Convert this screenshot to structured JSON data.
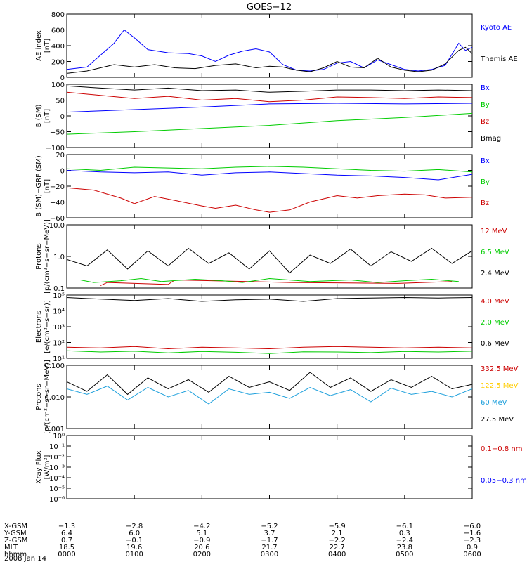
{
  "title": "GOES−12",
  "x_tick_hours": [
    0,
    1,
    2,
    3,
    4,
    5,
    6
  ],
  "footer": {
    "rows": [
      {
        "label": "X-GSM",
        "values": [
          "−1.3",
          "−2.8",
          "−4.2",
          "−5.2",
          "−5.9",
          "−6.1",
          "−6.0"
        ]
      },
      {
        "label": "Y-GSM",
        "values": [
          "6.4",
          "6.0",
          "5.1",
          "3.7",
          "2.1",
          "0.3",
          "−1.6"
        ]
      },
      {
        "label": "Z-GSM",
        "values": [
          "0.7",
          "−0.1",
          "−0.9",
          "−1.7",
          "−2.2",
          "−2.4",
          "−2.3"
        ]
      },
      {
        "label": "MLT",
        "values": [
          "18.5",
          "19.6",
          "20.6",
          "21.7",
          "22.7",
          "23.8",
          "0.9"
        ]
      },
      {
        "label": "hhmm",
        "values": [
          "0000",
          "0100",
          "0200",
          "0300",
          "0400",
          "0500",
          "0600"
        ]
      }
    ],
    "date": "2008 Jan 14"
  },
  "chart_data": [
    {
      "type": "line",
      "ylabel": [
        "AE index",
        "[nT]"
      ],
      "ylim": [
        0,
        800
      ],
      "yscale": "linear",
      "yticks": [
        "0",
        "200",
        "400",
        "600",
        "800"
      ],
      "series": [
        {
          "name": "Kyoto AE",
          "color": "#0000ff",
          "x": [
            0,
            0.3,
            0.5,
            0.7,
            0.85,
            1.0,
            1.2,
            1.5,
            1.8,
            2.0,
            2.2,
            2.4,
            2.6,
            2.8,
            3.0,
            3.2,
            3.4,
            3.6,
            3.8,
            4.0,
            4.2,
            4.4,
            4.6,
            4.8,
            5.0,
            5.2,
            5.4,
            5.6,
            5.8,
            5.9,
            6.0
          ],
          "y": [
            100,
            130,
            280,
            430,
            600,
            500,
            350,
            310,
            300,
            270,
            200,
            280,
            330,
            360,
            320,
            160,
            90,
            80,
            100,
            180,
            200,
            120,
            220,
            160,
            100,
            80,
            100,
            150,
            430,
            340,
            380
          ]
        },
        {
          "name": "Themis AE",
          "color": "#000000",
          "x": [
            0,
            0.3,
            0.5,
            0.7,
            1.0,
            1.3,
            1.6,
            1.9,
            2.2,
            2.5,
            2.8,
            3.0,
            3.2,
            3.4,
            3.6,
            3.8,
            4.0,
            4.2,
            4.4,
            4.6,
            4.8,
            5.0,
            5.2,
            5.4,
            5.6,
            5.8,
            5.9,
            6.0
          ],
          "y": [
            50,
            80,
            120,
            160,
            130,
            160,
            120,
            110,
            150,
            170,
            120,
            140,
            130,
            90,
            70,
            120,
            200,
            130,
            120,
            240,
            130,
            90,
            70,
            90,
            170,
            340,
            380,
            300
          ]
        }
      ]
    },
    {
      "type": "line",
      "ylabel": [
        "B (SM)",
        "[nT]"
      ],
      "ylim": [
        -100,
        100
      ],
      "yscale": "linear",
      "yticks": [
        "−100",
        "−50",
        "0",
        "50",
        "100"
      ],
      "series": [
        {
          "name": "Bx",
          "color": "#0000ff",
          "x": [
            0,
            1,
            2,
            3,
            4,
            5,
            6
          ],
          "y": [
            12,
            20,
            28,
            38,
            40,
            38,
            40
          ]
        },
        {
          "name": "By",
          "color": "#00cc00",
          "x": [
            0,
            1,
            2,
            3,
            4,
            5,
            6
          ],
          "y": [
            -58,
            -50,
            -40,
            -30,
            -15,
            -5,
            8
          ]
        },
        {
          "name": "Bz",
          "color": "#cc0000",
          "x": [
            0,
            0.5,
            1,
            1.5,
            2,
            2.5,
            3,
            3.5,
            4,
            4.5,
            5,
            5.5,
            6
          ],
          "y": [
            75,
            65,
            55,
            62,
            50,
            55,
            45,
            50,
            60,
            58,
            55,
            60,
            58
          ]
        },
        {
          "name": "Bmag",
          "color": "#000000",
          "x": [
            0,
            0.5,
            1,
            1.5,
            2,
            2.5,
            3,
            3.5,
            4,
            4.5,
            5,
            5.5,
            6
          ],
          "y": [
            95,
            88,
            82,
            88,
            80,
            82,
            75,
            78,
            82,
            82,
            80,
            82,
            80
          ]
        }
      ]
    },
    {
      "type": "line",
      "ylabel": [
        "B (SM)−GRF (SM)",
        "[nT]"
      ],
      "ylim": [
        -60,
        20
      ],
      "yscale": "linear",
      "yticks": [
        "−60",
        "−40",
        "−20",
        "0",
        "20"
      ],
      "series": [
        {
          "name": "Bx",
          "color": "#0000ff",
          "x": [
            0,
            0.5,
            1,
            1.5,
            2,
            2.5,
            3,
            3.5,
            4,
            4.5,
            5,
            5.5,
            6
          ],
          "y": [
            0,
            -2,
            -3,
            -2,
            -6,
            -3,
            -2,
            -4,
            -6,
            -7,
            -9,
            -12,
            -5
          ]
        },
        {
          "name": "By",
          "color": "#00cc00",
          "x": [
            0,
            0.5,
            1,
            1.5,
            2,
            2.5,
            3,
            3.5,
            4,
            4.5,
            5,
            5.5,
            6
          ],
          "y": [
            2,
            0,
            4,
            3,
            2,
            4,
            5,
            4,
            2,
            0,
            -1,
            1,
            -2
          ]
        },
        {
          "name": "Bz",
          "color": "#cc0000",
          "x": [
            0,
            0.4,
            0.8,
            1.0,
            1.3,
            1.6,
            2.0,
            2.2,
            2.5,
            2.8,
            3.0,
            3.3,
            3.6,
            4.0,
            4.3,
            4.6,
            5.0,
            5.3,
            5.6,
            6.0
          ],
          "y": [
            -22,
            -25,
            -35,
            -42,
            -33,
            -38,
            -45,
            -48,
            -44,
            -50,
            -53,
            -50,
            -40,
            -32,
            -35,
            -32,
            -30,
            -31,
            -35,
            -34
          ]
        }
      ]
    },
    {
      "type": "line",
      "ylabel": [
        "Protons",
        "[p/(cm²−s−sr−MeV)]"
      ],
      "ylim": [
        0.1,
        10
      ],
      "yscale": "log",
      "yticks": [
        "0.1",
        "1.0",
        "10.0"
      ],
      "series": [
        {
          "name": "12 MeV",
          "color": "#cc0000",
          "x": [
            0.5,
            0.6,
            1.5,
            1.6,
            3.3,
            4.9,
            5.7
          ],
          "y": [
            0.12,
            0.15,
            0.13,
            0.18,
            0.15,
            0.14,
            0.16
          ]
        },
        {
          "name": "6.5 MeV",
          "color": "#00cc00",
          "x": [
            0.2,
            0.4,
            0.8,
            1.1,
            1.4,
            1.9,
            2.3,
            2.6,
            3.0,
            3.6,
            4.2,
            4.6,
            5.0,
            5.4,
            5.8
          ],
          "y": [
            0.18,
            0.15,
            0.17,
            0.2,
            0.16,
            0.19,
            0.17,
            0.15,
            0.2,
            0.16,
            0.18,
            0.15,
            0.17,
            0.19,
            0.16
          ]
        },
        {
          "name": "2.4 MeV",
          "color": "#000000",
          "x": [
            0,
            0.3,
            0.6,
            0.9,
            1.2,
            1.5,
            1.8,
            2.1,
            2.4,
            2.7,
            3.0,
            3.3,
            3.6,
            3.9,
            4.2,
            4.5,
            4.8,
            5.1,
            5.4,
            5.7,
            6.0
          ],
          "y": [
            0.8,
            0.5,
            1.6,
            0.4,
            1.5,
            0.5,
            1.8,
            0.6,
            1.3,
            0.4,
            1.5,
            0.3,
            1.1,
            0.6,
            1.7,
            0.5,
            1.4,
            0.7,
            1.8,
            0.6,
            1.5
          ]
        }
      ]
    },
    {
      "type": "line",
      "ylabel": [
        "Electrons",
        "[e/(cm²−s−sr)]"
      ],
      "ylim": [
        10,
        100000
      ],
      "yscale": "log",
      "yticks": [
        "10¹",
        "10²",
        "10³",
        "10⁴",
        "10⁵"
      ],
      "series": [
        {
          "name": "4.0 MeV",
          "color": "#cc0000",
          "x": [
            0,
            0.5,
            1,
            1.5,
            2,
            2.5,
            3,
            3.5,
            4,
            4.5,
            5,
            5.5,
            6
          ],
          "y": [
            50,
            45,
            55,
            40,
            50,
            45,
            40,
            50,
            55,
            50,
            45,
            50,
            45
          ]
        },
        {
          "name": "2.0 MeV",
          "color": "#00cc00",
          "x": [
            0,
            0.5,
            1,
            1.5,
            2,
            2.5,
            3,
            3.5,
            4,
            4.5,
            5,
            5.5,
            6
          ],
          "y": [
            30,
            25,
            28,
            22,
            27,
            24,
            20,
            26,
            25,
            23,
            27,
            25,
            28
          ]
        },
        {
          "name": "0.6 MeV",
          "color": "#000000",
          "x": [
            0,
            0.5,
            1,
            1.5,
            2,
            2.5,
            3,
            3.5,
            4,
            4.5,
            5,
            5.5,
            6
          ],
          "y": [
            70000,
            55000,
            45000,
            60000,
            40000,
            50000,
            55000,
            40000,
            60000,
            65000,
            70000,
            65000,
            70000
          ]
        }
      ]
    },
    {
      "type": "line",
      "ylabel": [
        "Protons",
        "[p/(cm²−s−sr−MeV)]"
      ],
      "ylim": [
        0.001,
        0.1
      ],
      "yscale": "log",
      "yticks": [
        "0.001",
        "0.010",
        "0.100"
      ],
      "series": [
        {
          "name": "332.5 MeV",
          "color": "#cc0000",
          "x": [],
          "y": []
        },
        {
          "name": "122.5 MeV",
          "color": "#ffcc00",
          "x": [],
          "y": []
        },
        {
          "name": "60 MeV",
          "color": "#1ea0dc",
          "x": [
            0,
            0.3,
            0.6,
            0.9,
            1.2,
            1.5,
            1.8,
            2.1,
            2.4,
            2.7,
            3.0,
            3.3,
            3.6,
            3.9,
            4.2,
            4.5,
            4.8,
            5.1,
            5.4,
            5.7,
            6.0
          ],
          "y": [
            0.018,
            0.012,
            0.022,
            0.008,
            0.02,
            0.01,
            0.016,
            0.006,
            0.018,
            0.012,
            0.014,
            0.009,
            0.02,
            0.011,
            0.017,
            0.007,
            0.019,
            0.012,
            0.015,
            0.01,
            0.018
          ]
        },
        {
          "name": "27.5 MeV",
          "color": "#000000",
          "x": [
            0,
            0.3,
            0.6,
            0.9,
            1.2,
            1.5,
            1.8,
            2.1,
            2.4,
            2.7,
            3.0,
            3.3,
            3.6,
            3.9,
            4.2,
            4.5,
            4.8,
            5.1,
            5.4,
            5.7,
            6.0
          ],
          "y": [
            0.03,
            0.015,
            0.05,
            0.012,
            0.04,
            0.018,
            0.035,
            0.014,
            0.045,
            0.02,
            0.03,
            0.016,
            0.06,
            0.02,
            0.04,
            0.015,
            0.035,
            0.02,
            0.045,
            0.018,
            0.025
          ]
        }
      ]
    },
    {
      "type": "line",
      "ylabel": [
        "Xray Flux",
        "[W/m²]"
      ],
      "ylim": [
        1e-06,
        1
      ],
      "yscale": "log",
      "yticks": [
        "10⁻⁶",
        "10⁻⁵",
        "10⁻⁴",
        "10⁻³",
        "10⁻²",
        "10⁻¹",
        "10⁰"
      ],
      "series": [
        {
          "name": "0.1−0.8 nm",
          "color": "#cc0000",
          "x": [],
          "y": []
        },
        {
          "name": "0.05−0.3 nm",
          "color": "#0000ff",
          "x": [],
          "y": []
        }
      ]
    }
  ]
}
